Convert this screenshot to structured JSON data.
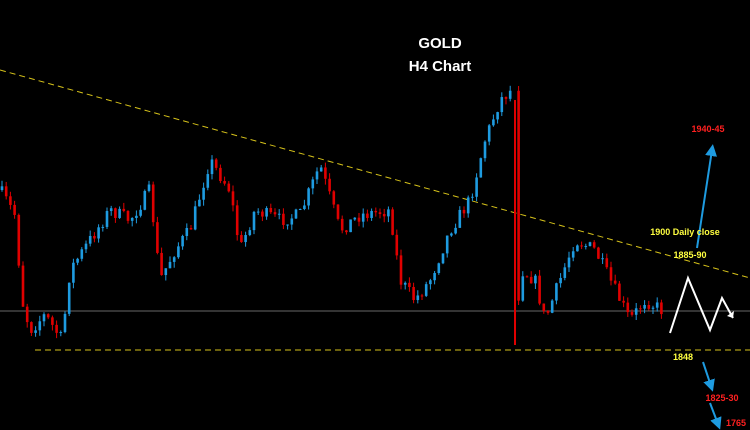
{
  "title": "GOLD",
  "subtitle": "H4 Chart",
  "levels": [
    {
      "label": "1940-45"
    },
    {
      "label": "1900 Daily close"
    },
    {
      "label": "1885-90"
    },
    {
      "label": "1848"
    },
    {
      "label": "1825-30"
    },
    {
      "label": "1765"
    }
  ]
}
